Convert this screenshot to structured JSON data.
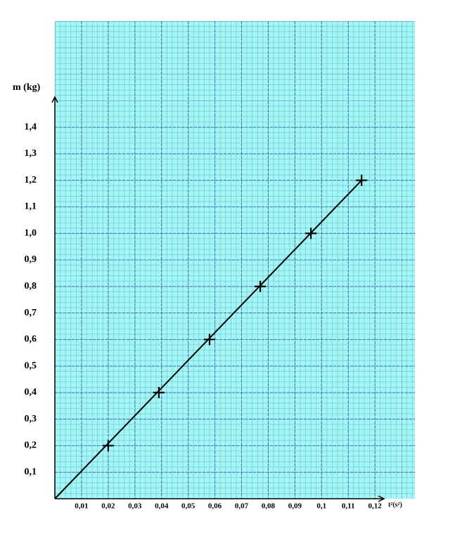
{
  "chart_data": {
    "type": "scatter",
    "y_label": "m (kg)",
    "x_label": "t²(s²)",
    "xlim": [
      0,
      0.135
    ],
    "ylim": [
      0,
      1.8
    ],
    "xticks": [
      {
        "value": 0.01,
        "label": "0,01"
      },
      {
        "value": 0.02,
        "label": "0,02"
      },
      {
        "value": 0.03,
        "label": "0,03"
      },
      {
        "value": 0.04,
        "label": "0,04"
      },
      {
        "value": 0.05,
        "label": "0,05"
      },
      {
        "value": 0.06,
        "label": "0,06"
      },
      {
        "value": 0.07,
        "label": "0,07"
      },
      {
        "value": 0.08,
        "label": "0,08"
      },
      {
        "value": 0.09,
        "label": "0,09"
      },
      {
        "value": 0.1,
        "label": "0,1"
      },
      {
        "value": 0.11,
        "label": "0,11"
      },
      {
        "value": 0.12,
        "label": "0,12"
      }
    ],
    "yticks": [
      {
        "value": 0.1,
        "label": "0,1"
      },
      {
        "value": 0.2,
        "label": "0,2"
      },
      {
        "value": 0.3,
        "label": "0,3"
      },
      {
        "value": 0.4,
        "label": "0,4"
      },
      {
        "value": 0.5,
        "label": "0,5"
      },
      {
        "value": 0.6,
        "label": "0,6"
      },
      {
        "value": 0.7,
        "label": "0,7"
      },
      {
        "value": 0.8,
        "label": "0,8"
      },
      {
        "value": 0.9,
        "label": "0,9"
      },
      {
        "value": 1.0,
        "label": "1,0"
      },
      {
        "value": 1.1,
        "label": "1,1"
      },
      {
        "value": 1.2,
        "label": "1,2"
      },
      {
        "value": 1.3,
        "label": "1,3"
      },
      {
        "value": 1.4,
        "label": "1,4"
      }
    ],
    "grid": true,
    "color": "#000000",
    "x": [
      0.02,
      0.039,
      0.058,
      0.077,
      0.096,
      0.115
    ],
    "values": [
      0.2,
      0.4,
      0.6,
      0.8,
      1.0,
      1.2
    ]
  }
}
